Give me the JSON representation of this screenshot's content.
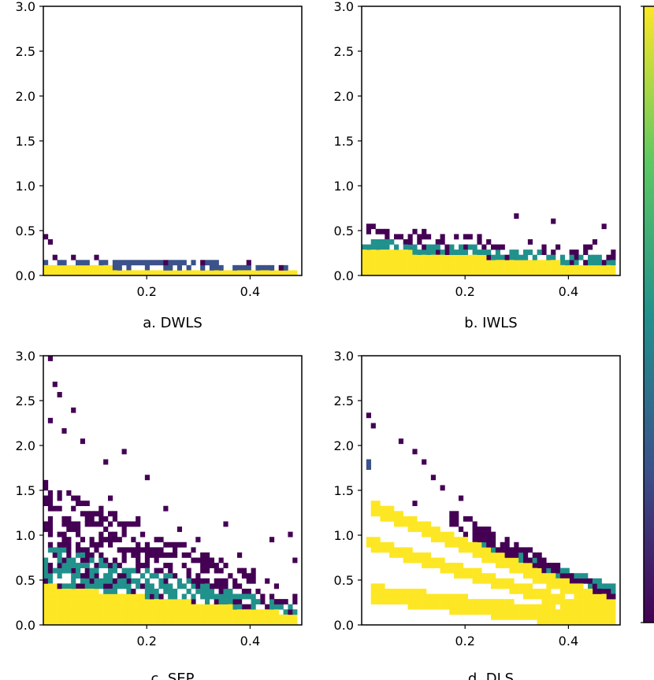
{
  "figure": {
    "colormap": [
      "#440154",
      "#3b528b",
      "#21918c",
      "#5ec962",
      "#fde725"
    ],
    "colorbar": {
      "visible": true,
      "tick_labels": []
    }
  },
  "chart_data": [
    {
      "type": "heatmap",
      "title": "a. DWLS",
      "xlabel": "a. DWLS",
      "ylabel": "",
      "xlim": [
        0.0,
        0.5
      ],
      "ylim": [
        0.0,
        3.0
      ],
      "xticks": [
        "0.2",
        "0.4"
      ],
      "yticks": [
        "0.0",
        "0.5",
        "1.0",
        "1.5",
        "2.0",
        "2.5",
        "3.0"
      ],
      "bands": [
        {
          "shape": "floor",
          "x_start": 0.0,
          "x_end": 0.49,
          "y_top_start": 0.1,
          "y_top_end": 0.05,
          "width": 0.1,
          "color_index": 4
        },
        {
          "shape": "floor",
          "x_start": 0.0,
          "x_end": 0.49,
          "y_top_start": 0.2,
          "y_top_end": 0.12,
          "width": 0.1,
          "color_index": 1,
          "sparse": 0.4
        }
      ],
      "scatter": [
        [
          0.005,
          0.45
        ],
        [
          0.01,
          0.35
        ],
        [
          0.02,
          0.22
        ],
        [
          0.06,
          0.19
        ],
        [
          0.1,
          0.2
        ],
        [
          0.14,
          0.12
        ],
        [
          0.24,
          0.12
        ],
        [
          0.31,
          0.15
        ],
        [
          0.4,
          0.12
        ],
        [
          0.46,
          0.1
        ]
      ]
    },
    {
      "type": "heatmap",
      "title": "b. IWLS",
      "xlabel": "b. IWLS",
      "ylabel": "",
      "xlim": [
        0.0,
        0.5
      ],
      "ylim": [
        0.0,
        3.0
      ],
      "xticks": [
        "0.2",
        "0.4"
      ],
      "yticks": [
        "0.0",
        "0.5",
        "1.0",
        "1.5",
        "2.0",
        "2.5",
        "3.0"
      ],
      "bands": [
        {
          "shape": "floor",
          "x_start": 0.0,
          "x_end": 0.49,
          "y_top_start": 0.3,
          "y_top_end": 0.1,
          "width": 0.3,
          "color_index": 4
        },
        {
          "shape": "floor",
          "x_start": 0.0,
          "x_end": 0.49,
          "y_top_start": 0.42,
          "y_top_end": 0.2,
          "width": 0.16,
          "color_index": 2,
          "sparse": 0.3
        },
        {
          "shape": "floor",
          "x_start": 0.0,
          "x_end": 0.49,
          "y_top_start": 0.56,
          "y_top_end": 0.3,
          "width": 0.18,
          "color_index": 0,
          "sparse": 0.7
        }
      ],
      "scatter": [
        [
          0.02,
          0.55
        ],
        [
          0.05,
          0.5
        ],
        [
          0.09,
          0.4
        ],
        [
          0.16,
          0.45
        ],
        [
          0.21,
          0.42
        ],
        [
          0.3,
          0.68
        ],
        [
          0.33,
          0.38
        ],
        [
          0.37,
          0.58
        ],
        [
          0.45,
          0.4
        ],
        [
          0.47,
          0.55
        ]
      ]
    },
    {
      "type": "heatmap",
      "title": "c. SEP",
      "xlabel": "c. SEP",
      "ylabel": "",
      "xlim": [
        0.0,
        0.5
      ],
      "ylim": [
        0.0,
        3.0
      ],
      "xticks": [
        "0.2",
        "0.4"
      ],
      "yticks": [
        "0.0",
        "0.5",
        "1.0",
        "1.5",
        "2.0",
        "2.5",
        "3.0"
      ],
      "bands": [
        {
          "shape": "floor",
          "x_start": 0.0,
          "x_end": 0.49,
          "y_top_start": 0.45,
          "y_top_end": 0.12,
          "width": 0.45,
          "color_index": 4
        },
        {
          "shape": "floor",
          "x_start": 0.0,
          "x_end": 0.49,
          "y_top_start": 0.9,
          "y_top_end": 0.2,
          "width": 0.45,
          "color_index": 2,
          "sparse": 0.45
        },
        {
          "shape": "floor",
          "x_start": 0.0,
          "x_end": 0.49,
          "y_top_start": 1.6,
          "y_top_end": 0.35,
          "width": 0.7,
          "color_index": 0,
          "sparse": 0.5
        }
      ],
      "scatter": [
        [
          0.01,
          2.95
        ],
        [
          0.02,
          2.7
        ],
        [
          0.03,
          2.55
        ],
        [
          0.01,
          2.3
        ],
        [
          0.04,
          2.15
        ],
        [
          0.06,
          2.4
        ],
        [
          0.08,
          2.05
        ],
        [
          0.12,
          1.8
        ],
        [
          0.16,
          1.95
        ],
        [
          0.13,
          1.4
        ],
        [
          0.2,
          1.65
        ],
        [
          0.18,
          1.2
        ],
        [
          0.24,
          1.3
        ],
        [
          0.26,
          1.05
        ],
        [
          0.3,
          0.95
        ],
        [
          0.35,
          1.1
        ],
        [
          0.38,
          0.8
        ],
        [
          0.44,
          0.95
        ],
        [
          0.48,
          1.0
        ],
        [
          0.49,
          0.7
        ],
        [
          0.28,
          0.6
        ],
        [
          0.33,
          0.72
        ],
        [
          0.41,
          0.6
        ]
      ]
    },
    {
      "type": "heatmap",
      "title": "d. DLS",
      "xlabel": "d. DLS",
      "ylabel": "",
      "xlim": [
        0.0,
        0.5
      ],
      "ylim": [
        0.0,
        3.0
      ],
      "xticks": [
        "0.2",
        "0.4"
      ],
      "yticks": [
        "0.0",
        "0.5",
        "1.0",
        "1.5",
        "2.0",
        "2.5",
        "3.0"
      ],
      "bands": [
        {
          "shape": "line",
          "x_start": 0.015,
          "x_end": 0.49,
          "y_top_start": 1.4,
          "y_top_end": 0.28,
          "width": 0.16,
          "color_index": 4
        },
        {
          "shape": "line",
          "x_start": 0.005,
          "x_end": 0.49,
          "y_top_start": 1.0,
          "y_top_end": 0.15,
          "width": 0.14,
          "color_index": 4
        },
        {
          "shape": "line",
          "x_start": 0.02,
          "x_end": 0.49,
          "y_top_start": 0.45,
          "y_top_end": 0.12,
          "width": 0.2,
          "color_index": 4
        },
        {
          "shape": "line",
          "x_start": 0.17,
          "x_end": 0.49,
          "y_top_start": 1.3,
          "y_top_end": 0.35,
          "width": 0.22,
          "color_index": 0,
          "sparse": 0.4
        },
        {
          "shape": "line",
          "x_start": 0.22,
          "x_end": 0.49,
          "y_top_start": 0.95,
          "y_top_end": 0.45,
          "width": 0.12,
          "color_index": 2
        },
        {
          "shape": "line",
          "x_start": 0.005,
          "x_end": 0.02,
          "y_top_start": 2.4,
          "y_top_end": 1.4,
          "width": 0.12,
          "color_index": 1
        }
      ],
      "scatter": [
        [
          0.01,
          2.35
        ],
        [
          0.02,
          2.2
        ],
        [
          0.08,
          2.05
        ],
        [
          0.1,
          1.95
        ],
        [
          0.12,
          1.8
        ],
        [
          0.14,
          1.65
        ],
        [
          0.16,
          1.5
        ],
        [
          0.19,
          1.4
        ],
        [
          0.1,
          1.35
        ],
        [
          0.13,
          1.15
        ],
        [
          0.21,
          1.2
        ]
      ]
    }
  ]
}
